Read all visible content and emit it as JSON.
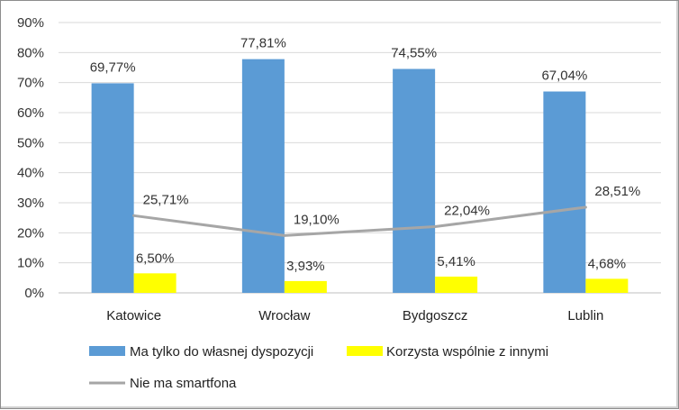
{
  "chart_data": {
    "type": "bar",
    "categories": [
      "Katowice",
      "Wrocław",
      "Bydgoszcz",
      "Lublin"
    ],
    "series": [
      {
        "name": "Ma tylko do własnej dyspozycji",
        "type": "bar",
        "color": "#5b9bd5",
        "values": [
          69.77,
          77.81,
          74.55,
          67.04
        ],
        "labels": [
          "69,77%",
          "77,81%",
          "74,55%",
          "67,04%"
        ]
      },
      {
        "name": "Korzysta wspólnie z innymi",
        "type": "bar",
        "color": "#ffff00",
        "values": [
          6.5,
          3.93,
          5.41,
          4.68
        ],
        "labels": [
          "6,50%",
          "3,93%",
          "5,41%",
          "4,68%"
        ]
      },
      {
        "name": "Nie ma smartfona",
        "type": "line",
        "color": "#a6a6a6",
        "values": [
          25.71,
          19.1,
          22.04,
          28.51
        ],
        "labels": [
          "25,71%",
          "19,10%",
          "22,04%",
          "28,51%"
        ]
      }
    ],
    "yticks": [
      "0%",
      "10%",
      "20%",
      "30%",
      "40%",
      "50%",
      "60%",
      "70%",
      "80%",
      "90%"
    ],
    "ylim": [
      0,
      90
    ],
    "grid": true,
    "legend_position": "bottom"
  }
}
